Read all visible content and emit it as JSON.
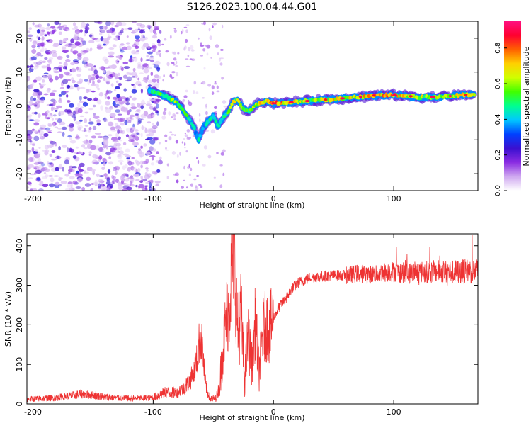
{
  "title": "S126.2023.100.04.44.G01",
  "chart_data": [
    {
      "type": "heatmap",
      "xlabel": "Height of straight line (km)",
      "ylabel": "Frequency (Hz)",
      "xlim": [
        -205,
        170
      ],
      "ylim": [
        -25,
        25
      ],
      "xticks": [
        -200,
        -100,
        0,
        100
      ],
      "yticks": [
        -20,
        -10,
        0,
        10,
        20
      ],
      "grid": false,
      "colorbar": {
        "label": "Normalized spectral amplitude",
        "range": [
          0.0,
          0.95
        ],
        "ticks": [
          "0.0",
          "0.2",
          "0.4",
          "0.6",
          "0.8"
        ],
        "colors": [
          "#ffffff",
          "#cfa8f0",
          "#8a2be2",
          "#3a10d0",
          "#0040ff",
          "#00c8ff",
          "#00ff90",
          "#40ff00",
          "#d0ff00",
          "#ffd000",
          "#ff6000",
          "#ff0030",
          "#ff1080"
        ]
      },
      "ridge": {
        "x": [
          -103,
          -95,
          -88,
          -80,
          -75,
          -70,
          -66,
          -62,
          -58,
          -54,
          -50,
          -46,
          -42,
          -38,
          -34,
          -30,
          -26,
          -22,
          -18,
          -14,
          -10,
          -5,
          0,
          10,
          20,
          30,
          40,
          50,
          60,
          70,
          80,
          90,
          100,
          110,
          120,
          130,
          140,
          150,
          160,
          168
        ],
        "y": [
          4.5,
          3.5,
          2.5,
          1.0,
          -1.5,
          -4.0,
          -6.5,
          -10.0,
          -6.0,
          -4.5,
          -3.0,
          -6.0,
          -3.5,
          -2.0,
          1.0,
          2.0,
          -0.5,
          -1.5,
          -1.0,
          0.5,
          1.0,
          1.5,
          0.8,
          1.0,
          1.2,
          1.5,
          1.8,
          2.0,
          2.3,
          2.6,
          3.0,
          3.2,
          3.2,
          3.0,
          2.6,
          2.6,
          2.8,
          3.0,
          3.3,
          3.5
        ],
        "amplitude": [
          0.55,
          0.55,
          0.6,
          0.65,
          0.6,
          0.5,
          0.45,
          0.5,
          0.45,
          0.55,
          0.5,
          0.45,
          0.5,
          0.6,
          0.7,
          0.65,
          0.6,
          0.65,
          0.7,
          0.7,
          0.75,
          0.8,
          0.85,
          0.8,
          0.7,
          0.65,
          0.7,
          0.75,
          0.7,
          0.75,
          0.8,
          0.85,
          0.8,
          0.75,
          0.7,
          0.65,
          0.7,
          0.75,
          0.7,
          0.65
        ]
      },
      "noise_region": {
        "x": [
          -205,
          -100
        ],
        "amplitude": [
          0.05,
          0.3
        ]
      }
    },
    {
      "type": "line",
      "xlabel": "Height of straight line (km)",
      "ylabel": "SNR (10 * v/v)",
      "xlim": [
        -205,
        170
      ],
      "ylim": [
        0,
        430
      ],
      "xticks": [
        -200,
        -100,
        0,
        100
      ],
      "yticks": [
        0,
        100,
        200,
        300,
        400
      ],
      "grid": false,
      "color": "#ee3333",
      "series": [
        {
          "x": [
            -205,
            -190,
            -180,
            -170,
            -160,
            -150,
            -140,
            -130,
            -120,
            -110,
            -100,
            -95,
            -90,
            -85,
            -80,
            -75,
            -70,
            -66,
            -63,
            -61,
            -59,
            -57,
            -55,
            -52,
            -48,
            -45,
            -42,
            -39,
            -37,
            -35,
            -33,
            -31,
            -29,
            -27,
            -24,
            -21,
            -18,
            -15,
            -12,
            -9,
            -6,
            -3,
            0,
            3,
            6,
            10,
            15,
            20,
            25,
            30,
            40,
            50,
            60,
            70,
            80,
            90,
            100,
            110,
            120,
            130,
            140,
            150,
            160,
            170
          ],
          "y": [
            12,
            14,
            16,
            20,
            25,
            22,
            18,
            15,
            14,
            14,
            16,
            22,
            30,
            28,
            30,
            40,
            55,
            80,
            120,
            175,
            140,
            60,
            30,
            12,
            15,
            40,
            140,
            220,
            240,
            330,
            410,
            260,
            160,
            240,
            60,
            170,
            100,
            210,
            80,
            180,
            200,
            190,
            215,
            235,
            250,
            265,
            290,
            305,
            312,
            320,
            322,
            325,
            325,
            330,
            328,
            332,
            335,
            330,
            332,
            334,
            335,
            333,
            335,
            336
          ]
        }
      ]
    }
  ]
}
